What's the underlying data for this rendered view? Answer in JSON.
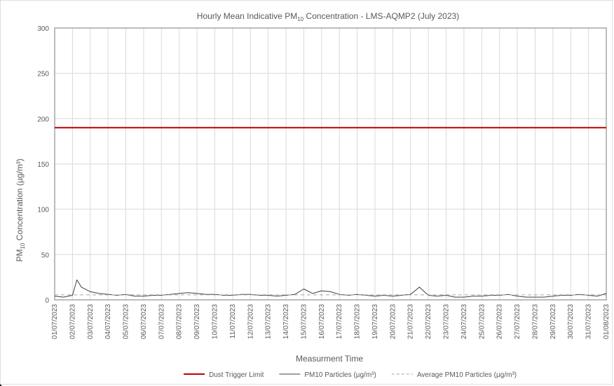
{
  "chart_data": {
    "type": "line",
    "title": {
      "prefix": "Hourly Mean Indicative PM",
      "subscript": "10",
      "suffix": " Concentration - LMS-AQMP2 (July 2023)"
    },
    "xlabel": "Measurment Time",
    "ylabel": {
      "prefix": "PM",
      "subscript": "10",
      "suffix": " Concentration (µg/m³)"
    },
    "ylim": [
      0,
      300
    ],
    "yticks": [
      0,
      50,
      100,
      150,
      200,
      250,
      300
    ],
    "xticks": [
      "01/07/2023",
      "02/07/2023",
      "03/07/2023",
      "04/07/2023",
      "05/07/2023",
      "06/07/2023",
      "07/07/2023",
      "08/07/2023",
      "09/07/2023",
      "10/07/2023",
      "11/07/2023",
      "12/07/2023",
      "13/07/2023",
      "14/07/2023",
      "15/07/2023",
      "16/07/2023",
      "17/07/2023",
      "18/07/2023",
      "19/07/2023",
      "20/07/2023",
      "21/07/2023",
      "22/07/2023",
      "23/07/2023",
      "24/07/2023",
      "25/07/2023",
      "26/07/2023",
      "27/07/2023",
      "28/07/2023",
      "29/07/2023",
      "30/07/2023",
      "31/07/2023",
      "01/08/2023"
    ],
    "grid": true,
    "legend_position": "bottom",
    "series": [
      {
        "name": "Dust Trigger Limit",
        "style": "solid",
        "color": "#c00000",
        "x": [
          "01/07/2023",
          "01/08/2023"
        ],
        "values": [
          190,
          190
        ]
      },
      {
        "name": "PM10 Particles (µg/m³)",
        "style": "solid",
        "color": "#404040",
        "x": [
          "01/07/2023",
          "01/07/2023 12:00",
          "02/07/2023",
          "02/07/2023 06:00",
          "02/07/2023 12:00",
          "03/07/2023",
          "03/07/2023 12:00",
          "04/07/2023",
          "04/07/2023 12:00",
          "05/07/2023",
          "05/07/2023 12:00",
          "06/07/2023",
          "06/07/2023 12:00",
          "07/07/2023",
          "07/07/2023 12:00",
          "08/07/2023",
          "08/07/2023 12:00",
          "09/07/2023",
          "09/07/2023 12:00",
          "10/07/2023",
          "10/07/2023 12:00",
          "11/07/2023",
          "11/07/2023 12:00",
          "12/07/2023",
          "12/07/2023 12:00",
          "13/07/2023",
          "13/07/2023 12:00",
          "14/07/2023",
          "14/07/2023 12:00",
          "15/07/2023",
          "15/07/2023 12:00",
          "16/07/2023",
          "16/07/2023 12:00",
          "17/07/2023",
          "17/07/2023 12:00",
          "18/07/2023",
          "18/07/2023 12:00",
          "19/07/2023",
          "19/07/2023 12:00",
          "20/07/2023",
          "20/07/2023 12:00",
          "21/07/2023",
          "21/07/2023 12:00",
          "22/07/2023",
          "22/07/2023 12:00",
          "23/07/2023",
          "23/07/2023 12:00",
          "24/07/2023",
          "24/07/2023 12:00",
          "25/07/2023",
          "25/07/2023 12:00",
          "26/07/2023",
          "26/07/2023 12:00",
          "27/07/2023",
          "27/07/2023 12:00",
          "28/07/2023",
          "28/07/2023 12:00",
          "29/07/2023",
          "29/07/2023 12:00",
          "30/07/2023",
          "30/07/2023 12:00",
          "31/07/2023",
          "31/07/2023 12:00",
          "01/08/2023"
        ],
        "values": [
          4,
          3,
          5,
          22,
          14,
          9,
          7,
          6,
          5,
          6,
          4,
          4,
          5,
          5,
          6,
          7,
          8,
          7,
          6,
          6,
          5,
          5,
          6,
          6,
          5,
          5,
          4,
          5,
          6,
          12,
          7,
          10,
          9,
          6,
          5,
          6,
          5,
          4,
          5,
          4,
          5,
          6,
          14,
          5,
          4,
          5,
          3,
          3,
          4,
          4,
          5,
          5,
          6,
          4,
          3,
          3,
          3,
          4,
          5,
          5,
          6,
          5,
          4,
          7
        ]
      },
      {
        "name": "Average PM10 Particles (µg/m³)",
        "style": "dashed",
        "color": "#a6a6a6",
        "x": [
          "01/07/2023",
          "01/08/2023"
        ],
        "values": [
          5.5,
          5.5
        ]
      }
    ]
  }
}
